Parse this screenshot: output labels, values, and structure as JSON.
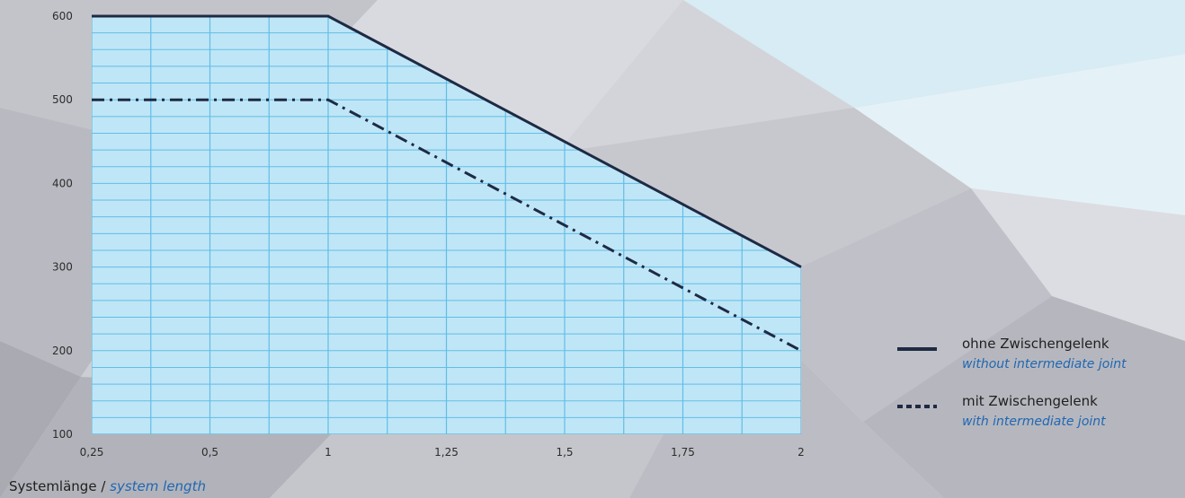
{
  "colors": {
    "fill": "#bfe6f7",
    "grid": "#62bde6",
    "line": "#1e2a44",
    "accent_text": "#1f67b3"
  },
  "chart_data": {
    "type": "line",
    "xlabel_de": "Systemlänge",
    "xlabel_sep": " / ",
    "xlabel_en": "system length",
    "x_ticks": [
      "0,25",
      "0,5",
      "1",
      "1,25",
      "1,5",
      "1,75",
      "2"
    ],
    "y_ticks": [
      "600",
      "500",
      "400",
      "300",
      "200",
      "100"
    ],
    "ylim": [
      100,
      600
    ],
    "series": [
      {
        "name_de": "ohne Zwischengelenk",
        "name_en": "without intermediate joint",
        "style": "solid",
        "points": [
          {
            "x": "0,25",
            "y": 600
          },
          {
            "x": "1",
            "y": 600
          },
          {
            "x": "2",
            "y": 300
          }
        ]
      },
      {
        "name_de": "mit Zwischengelenk",
        "name_en": "with intermediate joint",
        "style": "dash-dot",
        "points": [
          {
            "x": "0,25",
            "y": 500
          },
          {
            "x": "1",
            "y": 500
          },
          {
            "x": "2",
            "y": 200
          }
        ]
      }
    ],
    "legend_position": "right"
  }
}
